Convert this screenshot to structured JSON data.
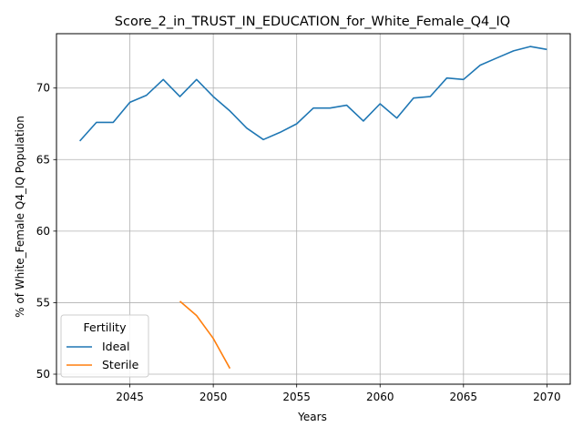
{
  "chart_data": {
    "type": "line",
    "title": "Score_2_in_TRUST_IN_EDUCATION_for_White_Female_Q4_IQ",
    "xlabel": "Years",
    "ylabel": "% of White_Female Q4_IQ Population",
    "xlim": [
      2040.6,
      2071.4
    ],
    "ylim": [
      49.3,
      73.8
    ],
    "x_ticks": [
      2045,
      2050,
      2055,
      2060,
      2065,
      2070
    ],
    "y_ticks": [
      50,
      55,
      60,
      65,
      70
    ],
    "grid": true,
    "legend": {
      "title": "Fertility",
      "placement": "lower-left"
    },
    "series": [
      {
        "name": "Ideal",
        "color": "#1f77b4",
        "x": [
          2042,
          2043,
          2044,
          2045,
          2046,
          2047,
          2048,
          2049,
          2050,
          2051,
          2052,
          2053,
          2054,
          2055,
          2056,
          2057,
          2058,
          2059,
          2060,
          2061,
          2062,
          2063,
          2064,
          2065,
          2066,
          2067,
          2068,
          2069,
          2070
        ],
        "y": [
          66.3,
          67.6,
          67.6,
          69.0,
          69.5,
          70.6,
          69.4,
          70.6,
          69.4,
          68.4,
          67.2,
          66.4,
          66.9,
          67.5,
          68.6,
          68.6,
          68.8,
          67.7,
          68.9,
          67.9,
          69.3,
          69.4,
          70.7,
          70.6,
          71.6,
          72.1,
          72.6,
          72.9,
          72.7
        ]
      },
      {
        "name": "Sterile",
        "color": "#ff7f0e",
        "x": [
          2048,
          2049,
          2050,
          2051
        ],
        "y": [
          55.1,
          54.1,
          52.5,
          50.4
        ]
      }
    ]
  }
}
